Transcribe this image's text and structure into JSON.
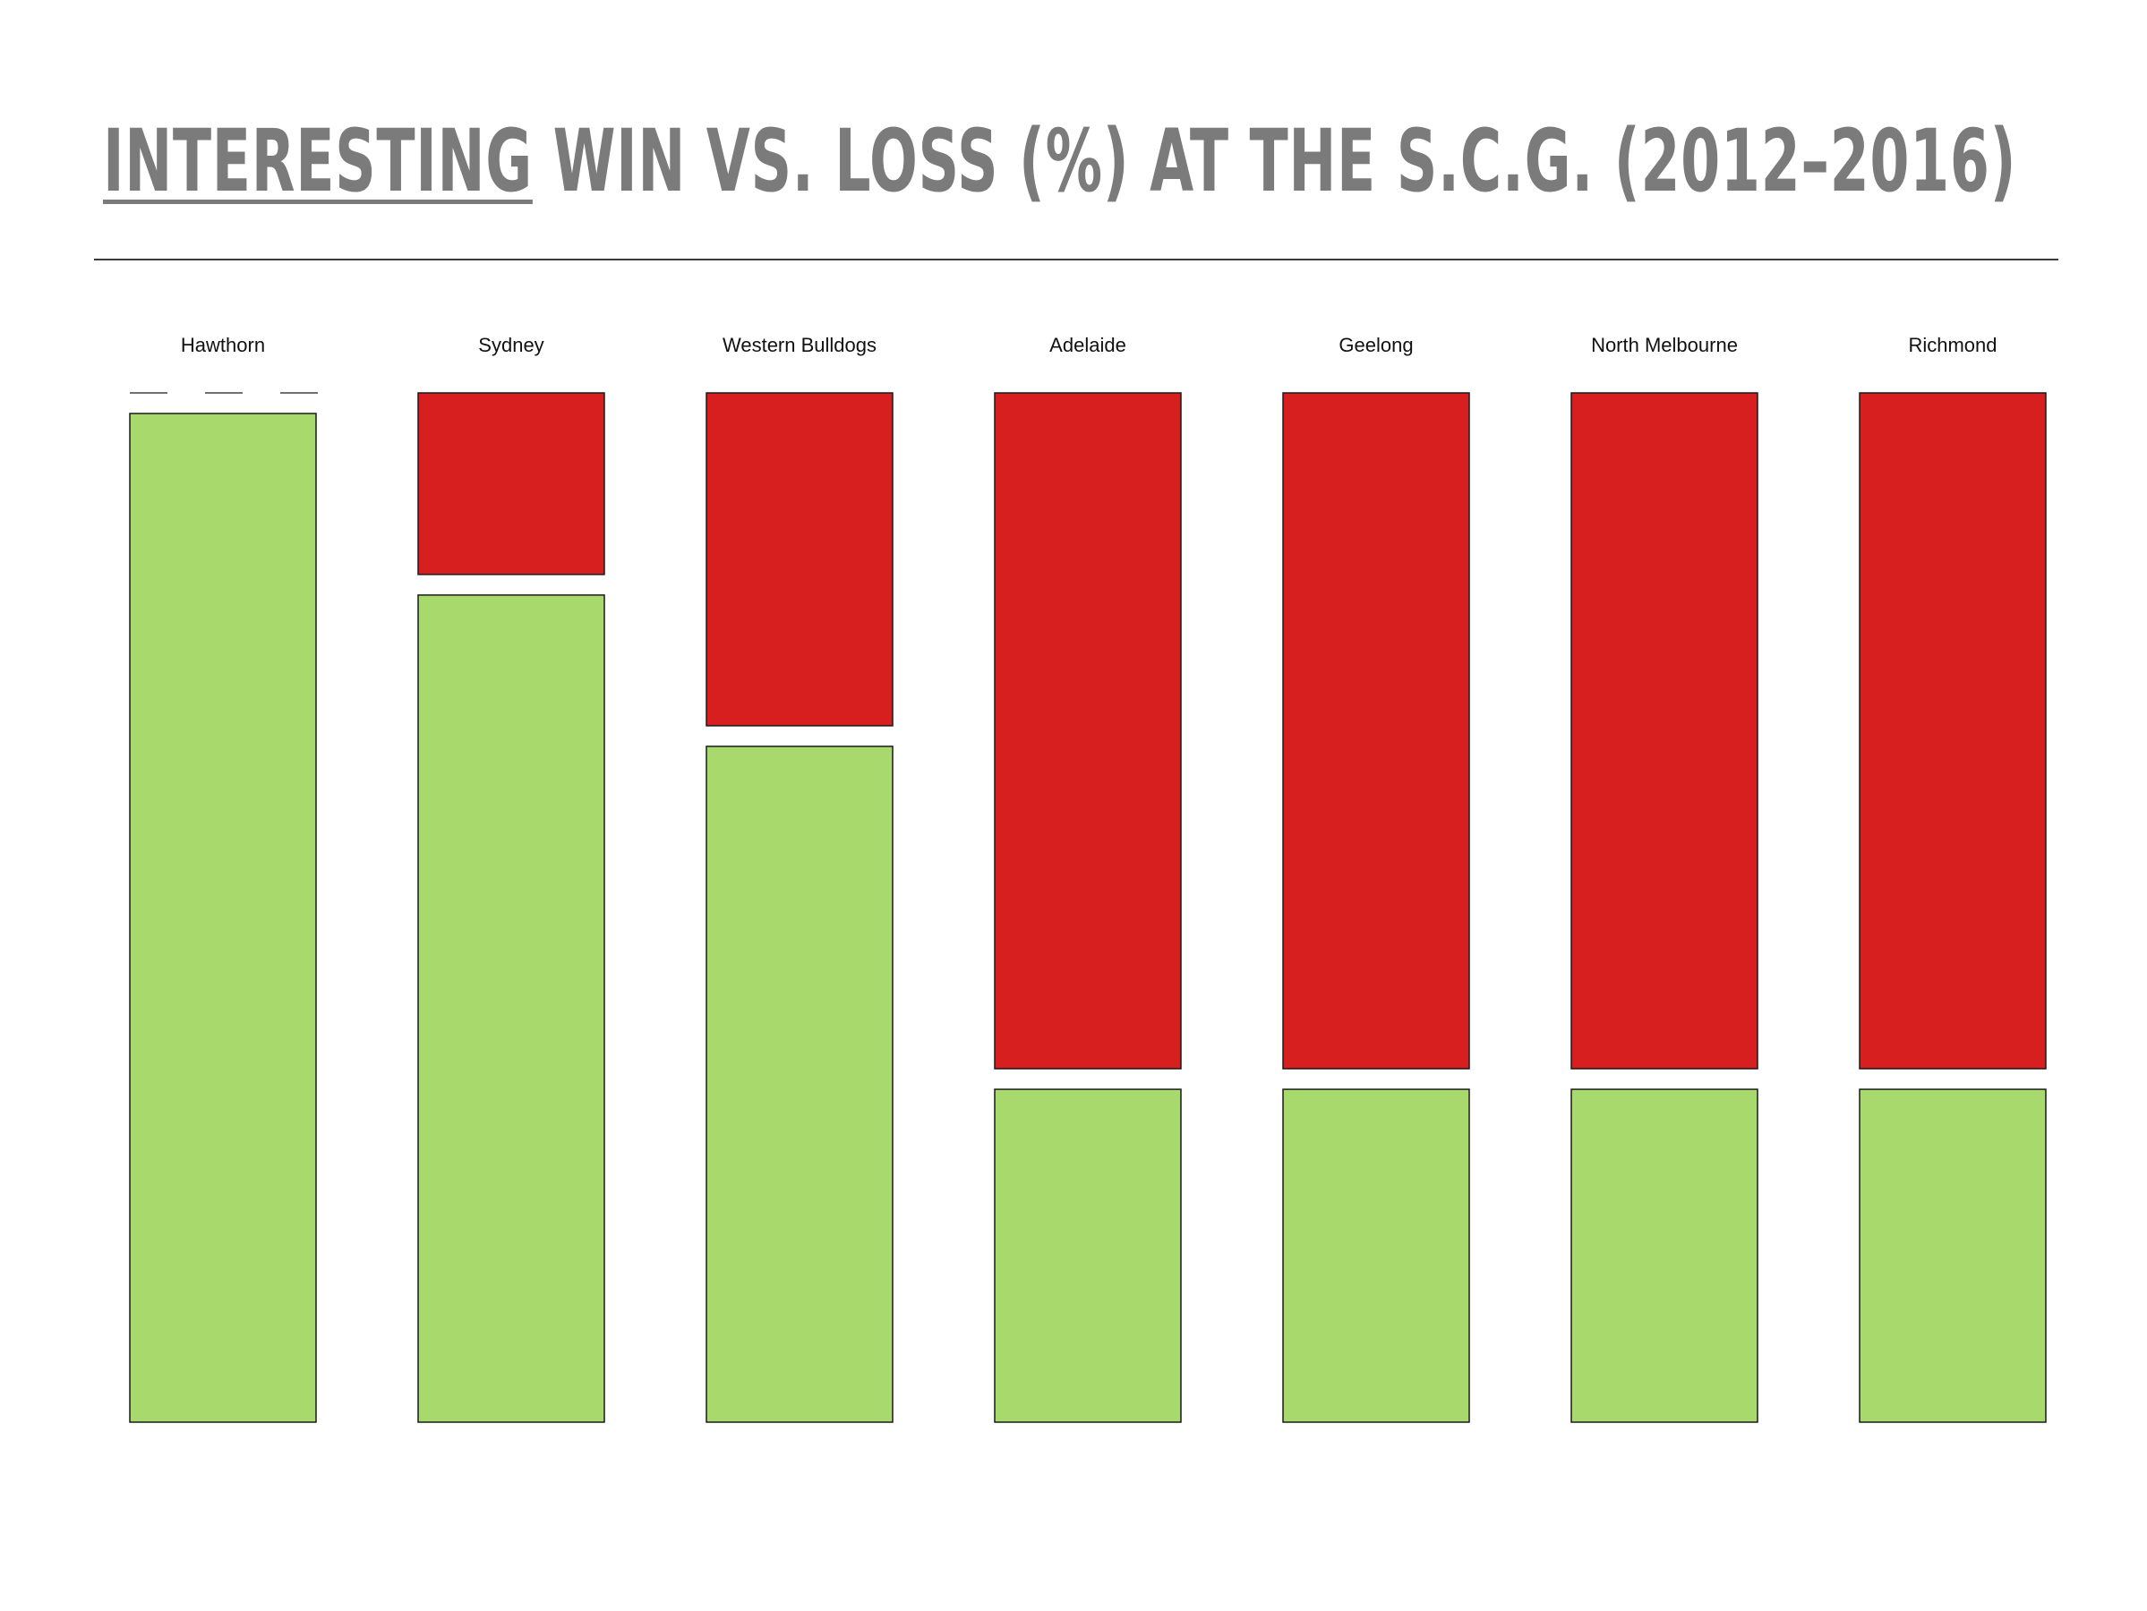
{
  "title": {
    "underlined": "INTERESTING",
    "rest": " WIN VS. LOSS (%) AT THE S.C.G. (2012–2016)"
  },
  "colors": {
    "win": "#a8d96c",
    "loss": "#d81f1f",
    "stroke": "#1a1a1a"
  },
  "chart_data": {
    "type": "bar",
    "stacked": true,
    "ylim": [
      0,
      100
    ],
    "grid": false,
    "categories": [
      "Hawthorn",
      "Sydney",
      "Western Bulldogs",
      "Adelaide",
      "Geelong",
      "North Melbourne",
      "Richmond"
    ],
    "series": [
      {
        "key": "win",
        "values": [
          100,
          82,
          67,
          33,
          33,
          33,
          33
        ]
      },
      {
        "key": "loss",
        "values": [
          0,
          18,
          33,
          67,
          67,
          67,
          67
        ]
      }
    ]
  }
}
